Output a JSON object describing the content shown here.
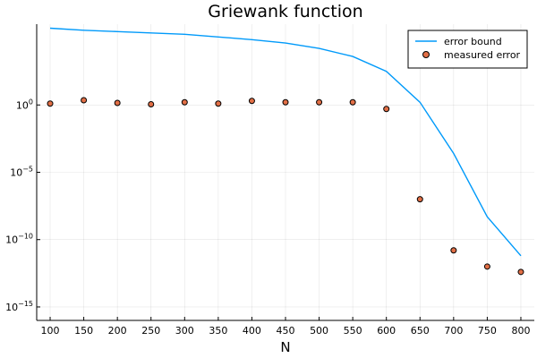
{
  "chart_data": {
    "type": "line",
    "title": "Griewank function",
    "xlabel": "N",
    "ylabel": "",
    "yscale": "log",
    "xlim": [
      80,
      820
    ],
    "ylim_log10": [
      -16.0,
      6.0
    ],
    "grid": true,
    "legend_position": "top-right",
    "x_ticks": [
      100,
      150,
      200,
      250,
      300,
      350,
      400,
      450,
      500,
      550,
      600,
      650,
      700,
      750,
      800
    ],
    "y_ticks": [
      {
        "log10": 0,
        "base": "10",
        "exp": "0"
      },
      {
        "log10": -5,
        "base": "10",
        "exp": "−5"
      },
      {
        "log10": -10,
        "base": "10",
        "exp": "−10"
      },
      {
        "log10": -15,
        "base": "10",
        "exp": "−15"
      }
    ],
    "series": [
      {
        "name": "error bound",
        "kind": "line",
        "color": "#009AFA",
        "x": [
          100,
          150,
          200,
          250,
          300,
          350,
          400,
          450,
          500,
          550,
          600,
          650,
          700,
          750,
          800
        ],
        "log10_y": [
          5.7,
          5.55,
          5.45,
          5.35,
          5.25,
          5.05,
          4.85,
          4.6,
          4.2,
          3.6,
          2.5,
          0.2,
          -3.6,
          -8.3,
          -11.2
        ]
      },
      {
        "name": "measured error",
        "kind": "scatter",
        "color": "#E26F46",
        "x": [
          100,
          150,
          200,
          250,
          300,
          350,
          400,
          450,
          500,
          550,
          600,
          650,
          700,
          750,
          800
        ],
        "log10_y": [
          0.1,
          0.35,
          0.15,
          0.05,
          0.2,
          0.1,
          0.3,
          0.2,
          0.2,
          0.2,
          -0.3,
          -7.0,
          -10.8,
          -12.0,
          -12.4
        ]
      }
    ]
  }
}
